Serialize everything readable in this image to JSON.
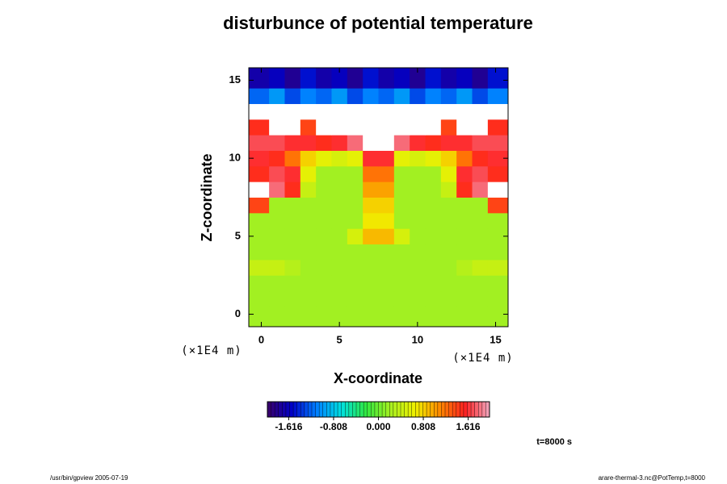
{
  "chart_data": {
    "type": "heatmap",
    "title": "disturbunce of potential temperature",
    "xlabel": "X-coordinate",
    "ylabel": "Z-coordinate",
    "xunit": "(×1E4 m)",
    "yunit": "(×1E4 m)",
    "annotation": "t=8000 s",
    "footer_left": "/usr/bin/gpview 2005-07-19",
    "footer_right": "arare-thermal-3.nc@PotTemp,t=8000",
    "x": [
      0,
      1,
      2,
      3,
      4,
      5,
      6,
      7,
      8,
      9,
      10,
      11,
      12,
      13,
      14,
      15
    ],
    "y": [
      0,
      1,
      2,
      3,
      4,
      5,
      6,
      7,
      8,
      9,
      10,
      11,
      12,
      13,
      14,
      15
    ],
    "xlim": [
      -0.8,
      15.8
    ],
    "ylim": [
      -0.8,
      15.8
    ],
    "xticks": [
      0,
      5,
      10,
      15
    ],
    "yticks": [
      0,
      5,
      10,
      15
    ],
    "clim": [
      -2,
      2
    ],
    "cticks": [
      -1.616,
      -0.808,
      {
        "value": 0,
        "label": "0.000"
      },
      0.808,
      1.616
    ],
    "colormap": [
      "#3a0068",
      "#0000c8",
      "#0080ff",
      "#00e0e0",
      "#30e840",
      "#a8f020",
      "#f0f000",
      "#ff8800",
      "#ff2020",
      "#f0a8c0"
    ],
    "out_of_range_color": "#ffffff",
    "values": [
      [
        0.2,
        0.2,
        0.2,
        0.2,
        0.2,
        0.2,
        0.2,
        0.2,
        0.2,
        0.2,
        0.2,
        0.2,
        0.2,
        0.2,
        0.2,
        0.2
      ],
      [
        0.2,
        0.2,
        0.2,
        0.2,
        0.2,
        0.2,
        0.2,
        0.2,
        0.2,
        0.2,
        0.2,
        0.2,
        0.2,
        0.2,
        0.2,
        0.2
      ],
      [
        0.2,
        0.2,
        0.2,
        0.2,
        0.2,
        0.2,
        0.2,
        0.2,
        0.2,
        0.2,
        0.2,
        0.2,
        0.2,
        0.2,
        0.2,
        0.2
      ],
      [
        0.4,
        0.4,
        0.3,
        0.2,
        0.2,
        0.2,
        0.2,
        0.2,
        0.2,
        0.2,
        0.2,
        0.2,
        0.2,
        0.3,
        0.4,
        0.4
      ],
      [
        0.2,
        0.2,
        0.2,
        0.2,
        0.2,
        0.2,
        0.2,
        0.2,
        0.2,
        0.2,
        0.2,
        0.2,
        0.2,
        0.2,
        0.2,
        0.2
      ],
      [
        0.2,
        0.2,
        0.2,
        0.2,
        0.2,
        0.2,
        0.5,
        0.9,
        0.9,
        0.5,
        0.2,
        0.2,
        0.2,
        0.2,
        0.2,
        0.2
      ],
      [
        0.2,
        0.2,
        0.2,
        0.2,
        0.2,
        0.2,
        0.2,
        0.7,
        0.7,
        0.2,
        0.2,
        0.2,
        0.2,
        0.2,
        0.2,
        0.2
      ],
      [
        1.4,
        0.2,
        0.2,
        0.2,
        0.2,
        0.2,
        0.2,
        0.8,
        0.8,
        0.2,
        0.2,
        0.2,
        0.2,
        0.2,
        0.2,
        1.4
      ],
      [
        2.5,
        1.8,
        1.5,
        0.4,
        0.2,
        0.2,
        0.2,
        1.0,
        1.0,
        0.2,
        0.2,
        0.2,
        0.4,
        1.5,
        1.8,
        2.5
      ],
      [
        1.5,
        1.7,
        1.6,
        0.6,
        0.2,
        0.2,
        0.2,
        1.2,
        1.2,
        0.2,
        0.2,
        0.2,
        0.6,
        1.6,
        1.7,
        1.5
      ],
      [
        1.6,
        1.5,
        1.2,
        0.8,
        0.6,
        0.5,
        0.6,
        1.6,
        1.6,
        0.6,
        0.5,
        0.6,
        0.8,
        1.2,
        1.5,
        1.6
      ],
      [
        1.7,
        1.7,
        1.6,
        1.6,
        1.5,
        1.6,
        1.8,
        2.5,
        2.5,
        1.8,
        1.6,
        1.5,
        1.6,
        1.6,
        1.7,
        1.7
      ],
      [
        1.5,
        2.5,
        2.5,
        1.4,
        2.5,
        2.5,
        2.5,
        2.5,
        2.5,
        2.5,
        2.5,
        2.5,
        1.4,
        2.5,
        2.5,
        1.5
      ],
      [
        2.5,
        2.5,
        2.5,
        2.5,
        2.5,
        2.5,
        2.5,
        2.5,
        2.5,
        2.5,
        2.5,
        2.5,
        2.5,
        2.5,
        2.5,
        2.5
      ],
      [
        -1.2,
        -1.0,
        -1.3,
        -1.1,
        -1.2,
        -1.0,
        -1.3,
        -1.1,
        -1.2,
        -1.0,
        -1.3,
        -1.1,
        -1.2,
        -1.0,
        -1.3,
        -1.1
      ],
      [
        -1.7,
        -1.6,
        -1.8,
        -1.5,
        -1.7,
        -1.6,
        -1.8,
        -1.5,
        -1.7,
        -1.6,
        -1.8,
        -1.5,
        -1.7,
        -1.6,
        -1.8,
        -1.5
      ]
    ]
  }
}
